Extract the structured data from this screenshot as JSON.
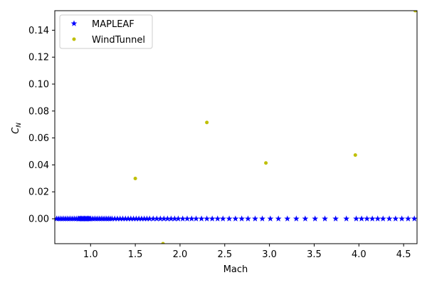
{
  "chart_data": {
    "type": "scatter",
    "xlabel": "Mach",
    "ylabel_base": "C",
    "ylabel_sub": "N",
    "xlim": [
      0.6,
      4.65
    ],
    "ylim": [
      -0.0185,
      0.1545
    ],
    "xticks": [
      1.0,
      1.5,
      2.0,
      2.5,
      3.0,
      3.5,
      4.0,
      4.5
    ],
    "xtick_labels": [
      "1.0",
      "1.5",
      "2.0",
      "2.5",
      "3.0",
      "3.5",
      "4.0",
      "4.5"
    ],
    "yticks": [
      0.0,
      0.02,
      0.04,
      0.06,
      0.08,
      0.1,
      0.12,
      0.14
    ],
    "ytick_labels": [
      "0.00",
      "0.02",
      "0.04",
      "0.06",
      "0.08",
      "0.10",
      "0.12",
      "0.14"
    ],
    "grid": false,
    "legend_position": "top-left",
    "series": [
      {
        "name": "MAPLEAF",
        "marker": "star",
        "color": "#0000ff",
        "x": [
          0.62,
          0.64,
          0.66,
          0.68,
          0.7,
          0.72,
          0.74,
          0.76,
          0.78,
          0.8,
          0.82,
          0.84,
          0.86,
          0.87,
          0.88,
          0.89,
          0.9,
          0.91,
          0.92,
          0.93,
          0.94,
          0.95,
          0.96,
          0.97,
          0.98,
          0.99,
          1.0,
          1.02,
          1.04,
          1.06,
          1.08,
          1.1,
          1.12,
          1.14,
          1.16,
          1.18,
          1.2,
          1.22,
          1.24,
          1.27,
          1.3,
          1.33,
          1.36,
          1.39,
          1.42,
          1.45,
          1.48,
          1.51,
          1.54,
          1.57,
          1.6,
          1.63,
          1.66,
          1.7,
          1.74,
          1.78,
          1.82,
          1.86,
          1.9,
          1.94,
          1.98,
          2.03,
          2.08,
          2.13,
          2.18,
          2.24,
          2.3,
          2.36,
          2.42,
          2.48,
          2.55,
          2.62,
          2.69,
          2.76,
          2.84,
          2.92,
          3.01,
          3.1,
          3.2,
          3.3,
          3.4,
          3.51,
          3.62,
          3.74,
          3.86,
          3.97,
          4.03,
          4.09,
          4.15,
          4.21,
          4.27,
          4.34,
          4.41,
          4.48,
          4.55,
          4.62
        ],
        "y": "all-zero"
      },
      {
        "name": "WindTunnel",
        "marker": "circle",
        "color": "#bfbf00",
        "x": [
          1.5,
          1.81,
          2.3,
          2.96,
          3.96,
          4.63
        ],
        "y": [
          0.0299,
          -0.0185,
          0.0715,
          0.0414,
          0.0473,
          0.1545
        ]
      }
    ]
  }
}
